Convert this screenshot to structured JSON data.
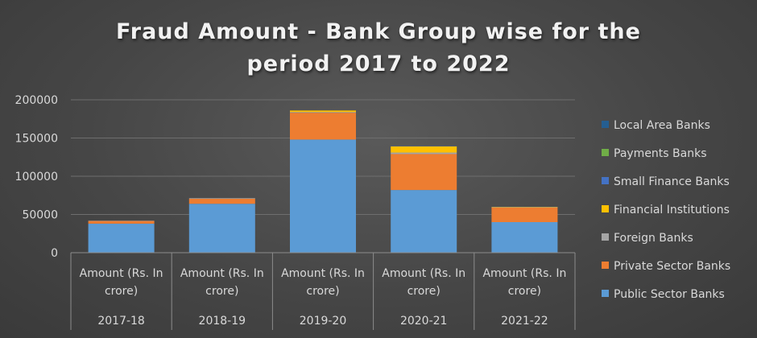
{
  "chart_data": {
    "type": "bar",
    "stacked": true,
    "title_line1": "Fraud Amount - Bank Group wise for the",
    "title_line2": "period 2017 to 2022",
    "categories": [
      "2017-18",
      "2018-19",
      "2019-20",
      "2020-21",
      "2021-22"
    ],
    "category_sublabel_line1": "Amount (Rs. In",
    "category_sublabel_line2": "crore)",
    "ylim": [
      0,
      200000
    ],
    "yticks": [
      "0",
      "50000",
      "100000",
      "150000",
      "200000"
    ],
    "grid": true,
    "legend_position": "right",
    "series": [
      {
        "name": "Public Sector Banks",
        "color": "#5b9bd5",
        "values": [
          38000,
          64000,
          148000,
          82000,
          40000
        ]
      },
      {
        "name": "Private Sector Banks",
        "color": "#ed7d31",
        "values": [
          3500,
          6500,
          35000,
          47000,
          19000
        ]
      },
      {
        "name": "Foreign Banks",
        "color": "#a5a5a5",
        "values": [
          400,
          800,
          1000,
          2000,
          600
        ]
      },
      {
        "name": "Financial Institutions",
        "color": "#ffc000",
        "values": [
          0,
          0,
          2000,
          8000,
          400
        ]
      },
      {
        "name": "Small Finance Banks",
        "color": "#4472c4",
        "values": [
          0,
          0,
          0,
          300,
          0
        ]
      },
      {
        "name": "Payments Banks",
        "color": "#70ad47",
        "values": [
          0,
          0,
          0,
          0,
          0
        ]
      },
      {
        "name": "Local Area Banks",
        "color": "#255e91",
        "values": [
          0,
          0,
          0,
          0,
          0
        ]
      }
    ],
    "legend_order": [
      "Local Area Banks",
      "Payments Banks",
      "Small Finance Banks",
      "Financial Institutions",
      "Foreign Banks",
      "Private Sector Banks",
      "Public Sector Banks"
    ],
    "colors": {
      "axis_text": "#d9d9d9",
      "grid": "#6e6e6e"
    }
  }
}
